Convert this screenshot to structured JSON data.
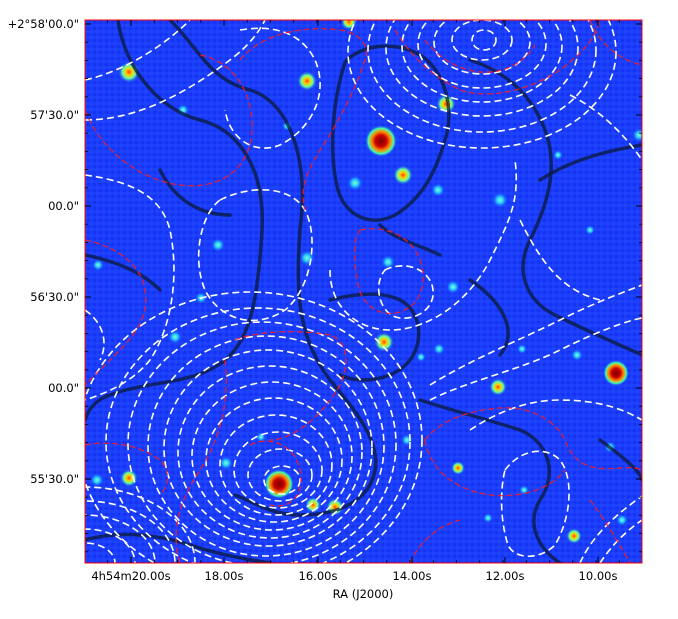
{
  "figure": {
    "xlabel": "RA (J2000)",
    "ylabel": "",
    "x_ticks": [
      "4h54m20.00s",
      "18.00s",
      "16.00s",
      "14.00s",
      "12.00s",
      "10.00s"
    ],
    "y_ticks": [
      "+2°58'00.0\"",
      "57'30.0\"",
      "00.0\"",
      "56'30.0\"",
      "00.0\"",
      "55'30.0\""
    ],
    "colormap": "jet",
    "background_color": "#1a3cff",
    "frame_color": "#ff0000",
    "contour_colors": {
      "white_dashed": "#ffffff",
      "red_dashed": "#ff1a1a",
      "black_solid": "#0a1a3a"
    }
  }
}
